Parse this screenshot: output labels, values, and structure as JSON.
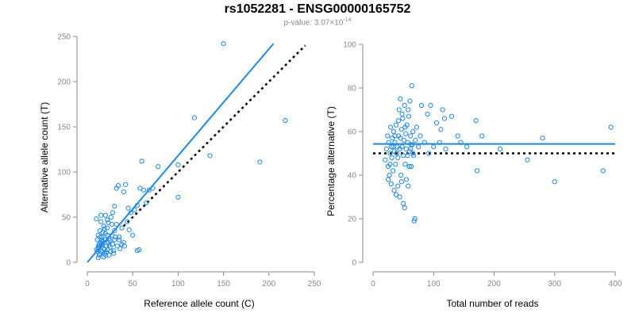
{
  "title": "rs1052281 - ENSG00000165752",
  "subtitle": {
    "prefix": "p-value: 3.07×10",
    "exponent": "-14"
  },
  "colors": {
    "accent": "#1e88e5",
    "axis": "#8a8a8a",
    "reference_line": "#000000"
  },
  "chart_data": [
    {
      "type": "scatter",
      "xlabel": "Reference allele count (C)",
      "ylabel": "Alternative allele count (T)",
      "xlim": [
        0,
        250
      ],
      "ylim": [
        0,
        250
      ],
      "xticks": [
        0,
        50,
        100,
        150,
        200,
        250
      ],
      "yticks": [
        0,
        50,
        100,
        150,
        200,
        250
      ],
      "points": [
        [
          10,
          14
        ],
        [
          12,
          18
        ],
        [
          14,
          10
        ],
        [
          15,
          22
        ],
        [
          16,
          12
        ],
        [
          18,
          15
        ],
        [
          20,
          25
        ],
        [
          12,
          30
        ],
        [
          13,
          8
        ],
        [
          17,
          20
        ],
        [
          11,
          12
        ],
        [
          19,
          10
        ],
        [
          21,
          18
        ],
        [
          22,
          14
        ],
        [
          23,
          22
        ],
        [
          25,
          17
        ],
        [
          14,
          35
        ],
        [
          16,
          28
        ],
        [
          18,
          40
        ],
        [
          20,
          32
        ],
        [
          24,
          26
        ],
        [
          26,
          12
        ],
        [
          28,
          20
        ],
        [
          30,
          25
        ],
        [
          10,
          48
        ],
        [
          15,
          45
        ],
        [
          20,
          52
        ],
        [
          22,
          38
        ],
        [
          12,
          5
        ],
        [
          18,
          6
        ],
        [
          24,
          8
        ],
        [
          27,
          30
        ],
        [
          30,
          35
        ],
        [
          32,
          42
        ],
        [
          35,
          28
        ],
        [
          38,
          20
        ],
        [
          13,
          20
        ],
        [
          16,
          25
        ],
        [
          21,
          11
        ],
        [
          25,
          24
        ],
        [
          29,
          13
        ],
        [
          33,
          18
        ],
        [
          36,
          15
        ],
        [
          40,
          22
        ],
        [
          11,
          25
        ],
        [
          14,
          28
        ],
        [
          17,
          33
        ],
        [
          19,
          37
        ],
        [
          23,
          44
        ],
        [
          26,
          50
        ],
        [
          28,
          55
        ],
        [
          30,
          62
        ],
        [
          32,
          82
        ],
        [
          34,
          85
        ],
        [
          40,
          78
        ],
        [
          42,
          86
        ],
        [
          45,
          60
        ],
        [
          48,
          55
        ],
        [
          52,
          58
        ],
        [
          55,
          63
        ],
        [
          58,
          82
        ],
        [
          60,
          112
        ],
        [
          62,
          80
        ],
        [
          65,
          66
        ],
        [
          68,
          80
        ],
        [
          72,
          82
        ],
        [
          78,
          106
        ],
        [
          100,
          108
        ],
        [
          100,
          72
        ],
        [
          118,
          160
        ],
        [
          135,
          118
        ],
        [
          150,
          242
        ],
        [
          190,
          111
        ],
        [
          218,
          157
        ],
        [
          55,
          13
        ],
        [
          57,
          14
        ],
        [
          44,
          45
        ],
        [
          38,
          38
        ],
        [
          27,
          42
        ],
        [
          22,
          47
        ],
        [
          15,
          52
        ],
        [
          35,
          25
        ],
        [
          41,
          18
        ],
        [
          46,
          36
        ],
        [
          50,
          30
        ],
        [
          12,
          15
        ],
        [
          13,
          17
        ],
        [
          16,
          19
        ],
        [
          17,
          23
        ],
        [
          19,
          14
        ],
        [
          20,
          8
        ],
        [
          22,
          30
        ],
        [
          24,
          19
        ],
        [
          29,
          10
        ],
        [
          31,
          28
        ]
      ],
      "fit_line": [
        [
          0,
          0
        ],
        [
          205,
          242
        ]
      ],
      "reference_line": [
        [
          40,
          40
        ],
        [
          240,
          240
        ]
      ]
    },
    {
      "type": "scatter",
      "xlabel": "Total number of reads",
      "ylabel": "Percentage alternative (T)",
      "xlim": [
        0,
        400
      ],
      "ylim": [
        0,
        100
      ],
      "xticks": [
        0,
        100,
        200,
        300,
        400
      ],
      "yticks": [
        0,
        20,
        40,
        60,
        80,
        100
      ],
      "points": [
        [
          20,
          47
        ],
        [
          22,
          52
        ],
        [
          24,
          58
        ],
        [
          25,
          44
        ],
        [
          26,
          55
        ],
        [
          27,
          40
        ],
        [
          28,
          50
        ],
        [
          29,
          62
        ],
        [
          30,
          36
        ],
        [
          30,
          53
        ],
        [
          31,
          48
        ],
        [
          32,
          57
        ],
        [
          33,
          42
        ],
        [
          34,
          60
        ],
        [
          35,
          33
        ],
        [
          35,
          51
        ],
        [
          36,
          55
        ],
        [
          37,
          45
        ],
        [
          38,
          63
        ],
        [
          38,
          31
        ],
        [
          39,
          50
        ],
        [
          40,
          53
        ],
        [
          41,
          48
        ],
        [
          42,
          58
        ],
        [
          42,
          65
        ],
        [
          43,
          70
        ],
        [
          44,
          52
        ],
        [
          45,
          57
        ],
        [
          45,
          75
        ],
        [
          46,
          40
        ],
        [
          47,
          61
        ],
        [
          48,
          53
        ],
        [
          49,
          66
        ],
        [
          50,
          27
        ],
        [
          50,
          49
        ],
        [
          51,
          56
        ],
        [
          52,
          72
        ],
        [
          53,
          45
        ],
        [
          54,
          59
        ],
        [
          55,
          52
        ],
        [
          55,
          38
        ],
        [
          56,
          63
        ],
        [
          57,
          55
        ],
        [
          58,
          35
        ],
        [
          59,
          67
        ],
        [
          60,
          51
        ],
        [
          61,
          74
        ],
        [
          62,
          58
        ],
        [
          63,
          44
        ],
        [
          64,
          81
        ],
        [
          65,
          54
        ],
        [
          66,
          60
        ],
        [
          67,
          49
        ],
        [
          68,
          19
        ],
        [
          69,
          20
        ],
        [
          70,
          56
        ],
        [
          72,
          62
        ],
        [
          75,
          53
        ],
        [
          78,
          58
        ],
        [
          80,
          72
        ],
        [
          85,
          55
        ],
        [
          90,
          68
        ],
        [
          92,
          50
        ],
        [
          95,
          72
        ],
        [
          100,
          53
        ],
        [
          105,
          64
        ],
        [
          110,
          55
        ],
        [
          112,
          61
        ],
        [
          115,
          70
        ],
        [
          118,
          66
        ],
        [
          120,
          52
        ],
        [
          130,
          67
        ],
        [
          140,
          58
        ],
        [
          145,
          55
        ],
        [
          155,
          53
        ],
        [
          170,
          65
        ],
        [
          172,
          42
        ],
        [
          180,
          58
        ],
        [
          210,
          52
        ],
        [
          255,
          47
        ],
        [
          280,
          57
        ],
        [
          300,
          37
        ],
        [
          380,
          42
        ],
        [
          393,
          62
        ],
        [
          25,
          38
        ],
        [
          28,
          45
        ],
        [
          33,
          53
        ],
        [
          36,
          58
        ],
        [
          41,
          35
        ],
        [
          44,
          30
        ],
        [
          47,
          37
        ],
        [
          52,
          25
        ],
        [
          57,
          49
        ],
        [
          62,
          52
        ],
        [
          48,
          68
        ],
        [
          53,
          62
        ],
        [
          58,
          70
        ],
        [
          60,
          44
        ],
        [
          63,
          54
        ],
        [
          66,
          50
        ]
      ],
      "fit_y": 54.3,
      "reference_y": 50
    }
  ]
}
